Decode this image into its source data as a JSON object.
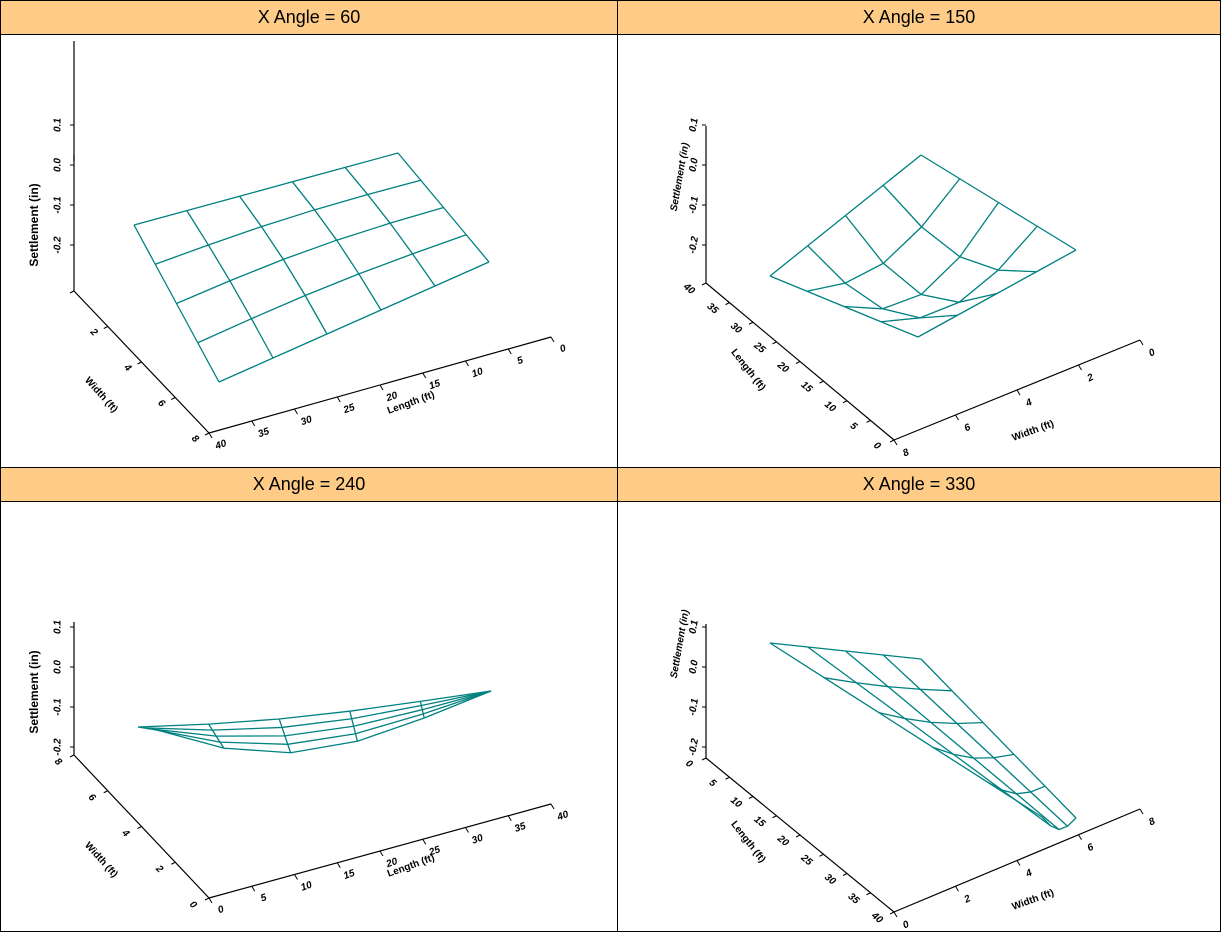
{
  "colors": {
    "header_bg": "#ffcc88",
    "surface": "#008080",
    "axes": "#000000",
    "border": "#000000"
  },
  "chart_data": [
    {
      "type": "surface",
      "title": "X Angle = 60",
      "xlabel": "Length (ft)",
      "ylabel": "Width (ft)",
      "zlabel": "Settlement (in)",
      "x_ticks": [
        "0",
        "5",
        "10",
        "15",
        "20",
        "25",
        "30",
        "35",
        "40"
      ],
      "y_ticks": [
        "2",
        "4",
        "6",
        "8"
      ],
      "z_ticks": [
        "0.1",
        "0.0",
        "-0.1",
        "-0.2"
      ]
    },
    {
      "type": "surface",
      "title": "X Angle = 150",
      "xlabel": "Length (ft)",
      "ylabel": "Width (ft)",
      "zlabel": "Settlement (in)",
      "x_ticks": [
        "0",
        "5",
        "10",
        "15",
        "20",
        "25",
        "30",
        "35",
        "40"
      ],
      "y_ticks": [
        "0",
        "2",
        "4",
        "6",
        "8"
      ],
      "z_ticks": [
        "0.1",
        "0.0",
        "-0.1",
        "-0.2"
      ]
    },
    {
      "type": "surface",
      "title": "X Angle = 240",
      "xlabel": "Length (ft)",
      "ylabel": "Width (ft)",
      "zlabel": "Settlement (in)",
      "x_ticks": [
        "0",
        "5",
        "10",
        "15",
        "20",
        "25",
        "30",
        "35",
        "40"
      ],
      "y_ticks": [
        "0",
        "2",
        "4",
        "6",
        "8"
      ],
      "z_ticks": [
        "0.1",
        "0.0",
        "-0.1",
        "-0.2"
      ]
    },
    {
      "type": "surface",
      "title": "X Angle = 330",
      "xlabel": "Length (ft)",
      "ylabel": "Width (ft)",
      "zlabel": "Settlement (in)",
      "x_ticks": [
        "0",
        "5",
        "10",
        "15",
        "20",
        "25",
        "30",
        "35",
        "40"
      ],
      "y_ticks": [
        "0",
        "2",
        "4",
        "6",
        "8"
      ],
      "z_ticks": [
        "0.1",
        "0.0",
        "-0.1",
        "-0.2"
      ]
    }
  ]
}
